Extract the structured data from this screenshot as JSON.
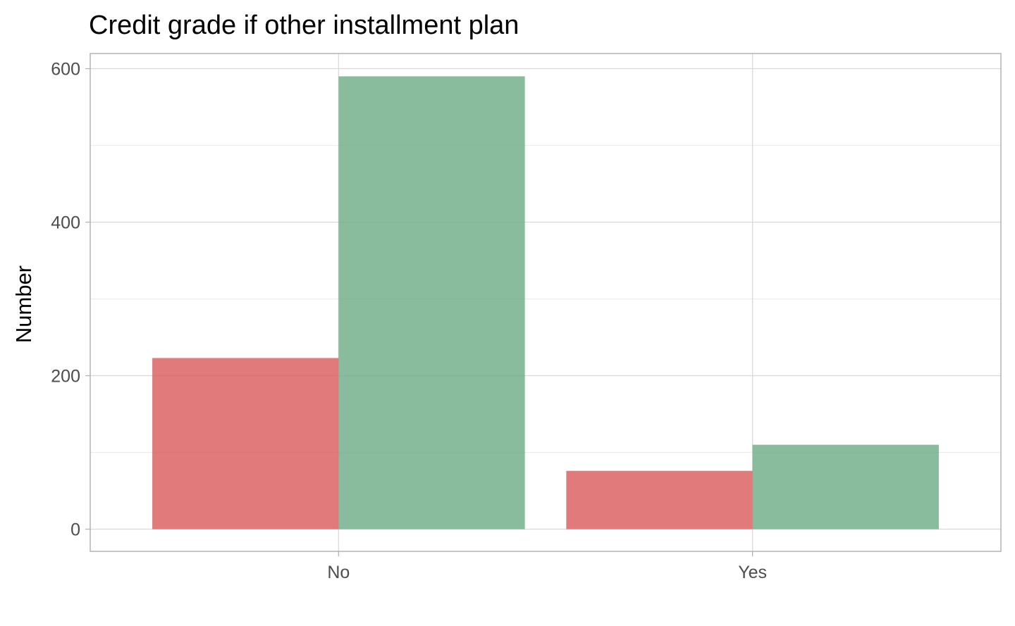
{
  "chart_data": {
    "type": "bar",
    "title": "Credit grade if other installment plan",
    "xlabel": "",
    "ylabel": "Number",
    "categories": [
      "No",
      "Yes"
    ],
    "series": [
      {
        "color": "#d9595a",
        "values": [
          223,
          76
        ]
      },
      {
        "color": "#6aab84",
        "values": [
          590,
          110
        ]
      }
    ],
    "ylim": [
      0,
      620
    ],
    "yticks": [
      0,
      200,
      400,
      600
    ],
    "grid": true,
    "legend": "none"
  }
}
